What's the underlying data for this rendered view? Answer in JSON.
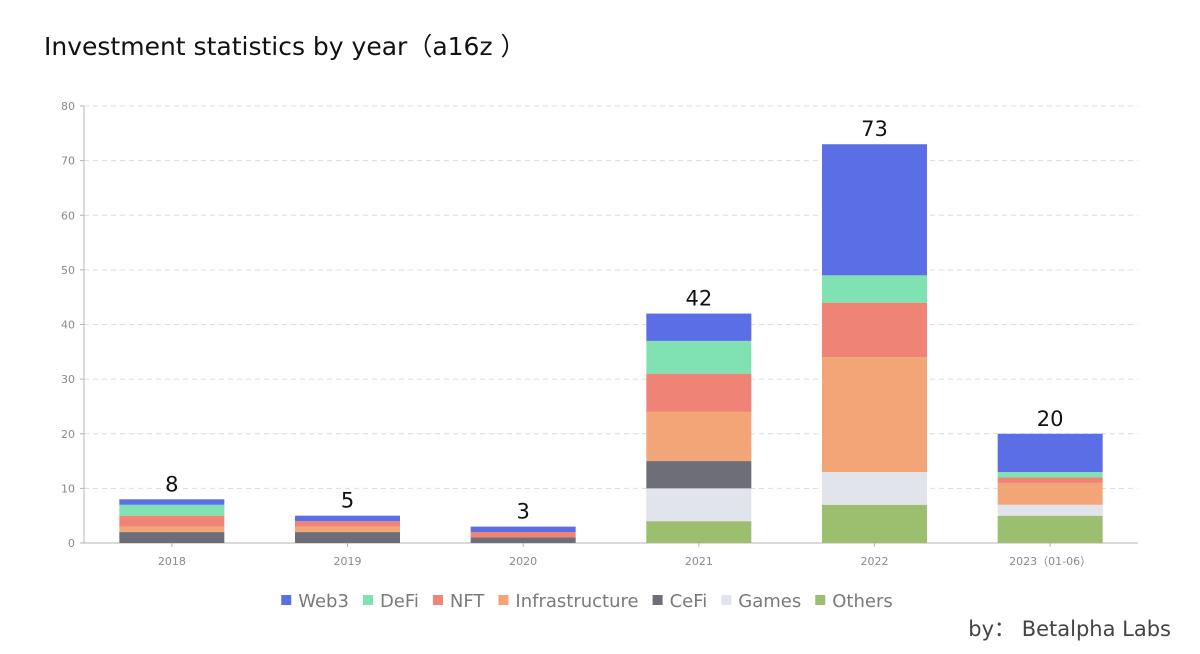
{
  "chart_data": {
    "type": "bar",
    "stacked": true,
    "title": "Investment statistics by year（a16z ）",
    "credit": "by： Betalpha Labs",
    "categories": [
      "2018",
      "2019",
      "2020",
      "2021",
      "2022",
      "2023（01-06）"
    ],
    "totals": [
      "8",
      "5",
      "3",
      "42",
      "73",
      "20"
    ],
    "ylim": [
      0,
      80
    ],
    "yticks": [
      "0",
      "10",
      "20",
      "30",
      "40",
      "50",
      "60",
      "70",
      "80"
    ],
    "grid": true,
    "legend_position": "bottom",
    "series": [
      {
        "name": "Others",
        "color": "#9bbf6e",
        "values": [
          0,
          0,
          0,
          4,
          7,
          5
        ]
      },
      {
        "name": "Games",
        "color": "#e2e4ec",
        "values": [
          0,
          0,
          0,
          6,
          6,
          2
        ]
      },
      {
        "name": "CeFi",
        "color": "#6e6e78",
        "values": [
          2,
          2,
          1,
          5,
          0,
          0
        ]
      },
      {
        "name": "Infrastructure",
        "color": "#f2a576",
        "values": [
          1,
          1,
          0,
          9,
          21,
          4
        ]
      },
      {
        "name": "NFT",
        "color": "#ef8376",
        "values": [
          2,
          1,
          1,
          7,
          10,
          1
        ]
      },
      {
        "name": "DeFi",
        "color": "#80e2b2",
        "values": [
          2,
          0,
          0,
          6,
          5,
          1
        ]
      },
      {
        "name": "Web3",
        "color": "#5b6ee6",
        "values": [
          1,
          1,
          1,
          5,
          24,
          7
        ]
      }
    ],
    "legend_order": [
      "Web3",
      "DeFi",
      "NFT",
      "Infrastructure",
      "CeFi",
      "Games",
      "Others"
    ]
  }
}
